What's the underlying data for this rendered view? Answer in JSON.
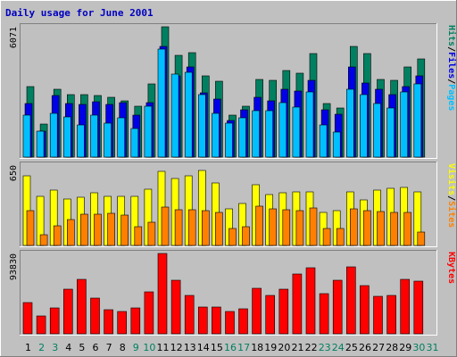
{
  "chart_data": {
    "type": "bar",
    "title": "Daily usage for June 2001",
    "days": [
      "1",
      "2",
      "3",
      "4",
      "5",
      "6",
      "7",
      "8",
      "9",
      "10",
      "11",
      "12",
      "13",
      "14",
      "15",
      "16",
      "17",
      "18",
      "19",
      "20",
      "21",
      "22",
      "23",
      "24",
      "25",
      "26",
      "27",
      "28",
      "29",
      "30",
      "31"
    ],
    "weekend_days": [
      "2",
      "3",
      "9",
      "10",
      "16",
      "17",
      "23",
      "24",
      "30",
      "31"
    ],
    "panels": [
      {
        "id": "top",
        "ymax_label": "6071",
        "ylim": [
          0,
          6071
        ],
        "series": [
          {
            "name": "Pages",
            "color": "#00bfff",
            "values": [
              1950,
              1220,
              2050,
              1870,
              1490,
              1940,
              1560,
              1830,
              1350,
              2350,
              5040,
              3850,
              3940,
              2920,
              2050,
              1580,
              1850,
              2170,
              2150,
              2530,
              2320,
              3030,
              1480,
              1160,
              3160,
              2900,
              2500,
              2300,
              3050,
              3400,
              0
            ]
          },
          {
            "name": "Files",
            "color": "#0000e6",
            "values": [
              2500,
              1200,
              2870,
              2500,
              2460,
              2570,
              2450,
              2520,
              1950,
              2530,
              5150,
              3780,
              4210,
              3000,
              2700,
              1700,
              2200,
              2800,
              2620,
              3150,
              3080,
              3560,
              2200,
              1980,
              4220,
              3450,
              3180,
              2900,
              3270,
              3800,
              0
            ]
          },
          {
            "name": "Hits",
            "color": "#008060",
            "values": [
              3300,
              1520,
              3150,
              2900,
              2920,
              2870,
              2800,
              2600,
              2350,
              3400,
              6071,
              4750,
              4850,
              3800,
              3520,
              1950,
              2380,
              3600,
              3560,
              4050,
              3910,
              4820,
              2500,
              2300,
              5150,
              4840,
              3620,
              3580,
              4200,
              4580,
              0
            ]
          }
        ]
      },
      {
        "id": "middle",
        "ymax_label": "650",
        "ylim": [
          0,
          650
        ],
        "series": [
          {
            "name": "Sites",
            "color": "#ff8000",
            "values": [
              280,
              90,
              160,
              210,
              250,
              255,
              260,
              245,
              155,
              185,
              310,
              290,
              290,
              285,
              270,
              135,
              155,
              320,
              295,
              290,
              285,
              300,
              135,
              140,
              295,
              285,
              275,
              270,
              265,
              105,
              0
            ]
          },
          {
            "name": "Visits",
            "color": "#ffff00",
            "values": [
              560,
              395,
              450,
              375,
              390,
              425,
              395,
              400,
              400,
              455,
              600,
              545,
              565,
              605,
              505,
              295,
              340,
              490,
              410,
              425,
              430,
              435,
              270,
              285,
              430,
              370,
              450,
              460,
              470,
              430,
              0
            ]
          }
        ]
      },
      {
        "id": "bottom",
        "ymax_label": "93830",
        "ylim": [
          0,
          93830
        ],
        "series": [
          {
            "name": "KBytes",
            "color": "#ff0000",
            "values": [
              37000,
              21000,
              30000,
              52000,
              64000,
              42000,
              28000,
              26000,
              30000,
              49000,
              93830,
              63000,
              45000,
              31000,
              31000,
              26000,
              29000,
              53000,
              45000,
              52000,
              70000,
              77000,
              47000,
              63000,
              78000,
              56000,
              44000,
              45000,
              64000,
              62000,
              0
            ]
          }
        ]
      }
    ],
    "side_labels": {
      "top": [
        "Hits",
        "/",
        "Files",
        "/",
        "Pages"
      ],
      "middle": [
        "Visits",
        "/",
        "Sites"
      ],
      "bottom": [
        "KBytes"
      ]
    },
    "colors": {
      "background": "#c0c0c0",
      "title": "#0000c0",
      "weekday_label": "#000000",
      "weekend_label": "#008060",
      "hits_label": "#008060",
      "files_label": "#0000e6",
      "pages_label": "#00bfff",
      "visits_label": "#ffff00",
      "sites_label": "#ff8000",
      "kbytes_label": "#ff0000",
      "slash": "#000000"
    }
  }
}
